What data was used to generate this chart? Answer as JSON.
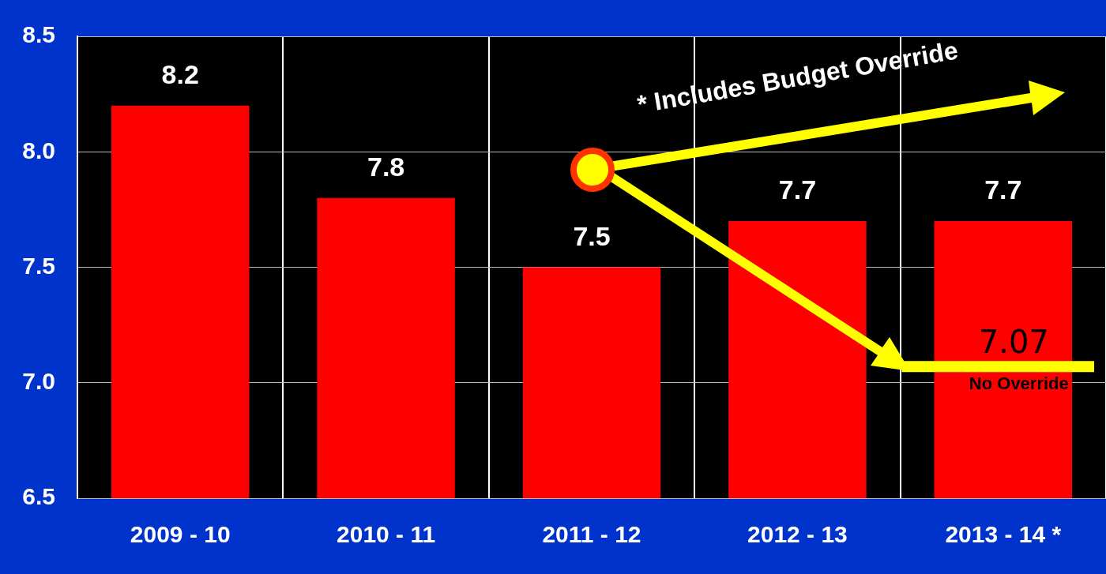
{
  "chart_data": {
    "type": "bar",
    "categories": [
      "2009 - 10",
      "2010 - 11",
      "2011 - 12",
      "2012 - 13",
      "2013 - 14 *"
    ],
    "values": [
      8.2,
      7.8,
      7.5,
      7.7,
      7.7
    ],
    "color": "#ff0000",
    "ylim": [
      6.5,
      8.5
    ],
    "yticks": [
      {
        "value": 6.5,
        "label": "6.5"
      },
      {
        "value": 7,
        "label": "7.0"
      },
      {
        "value": 7.5,
        "label": "7.5"
      },
      {
        "value": 8,
        "label": "8.0"
      },
      {
        "value": 8.5,
        "label": "8.5"
      }
    ],
    "grid": true,
    "legend": false,
    "data_labels": true,
    "ref_lines": [
      {
        "axis": "y",
        "value": 7.07,
        "label": "7.07",
        "color": "#ffff00"
      }
    ],
    "annotations": [
      "* Includes Budget Override",
      {
        "text": "No Override",
        "x": "2013 - 14 *",
        "y": 7.07
      }
    ]
  }
}
